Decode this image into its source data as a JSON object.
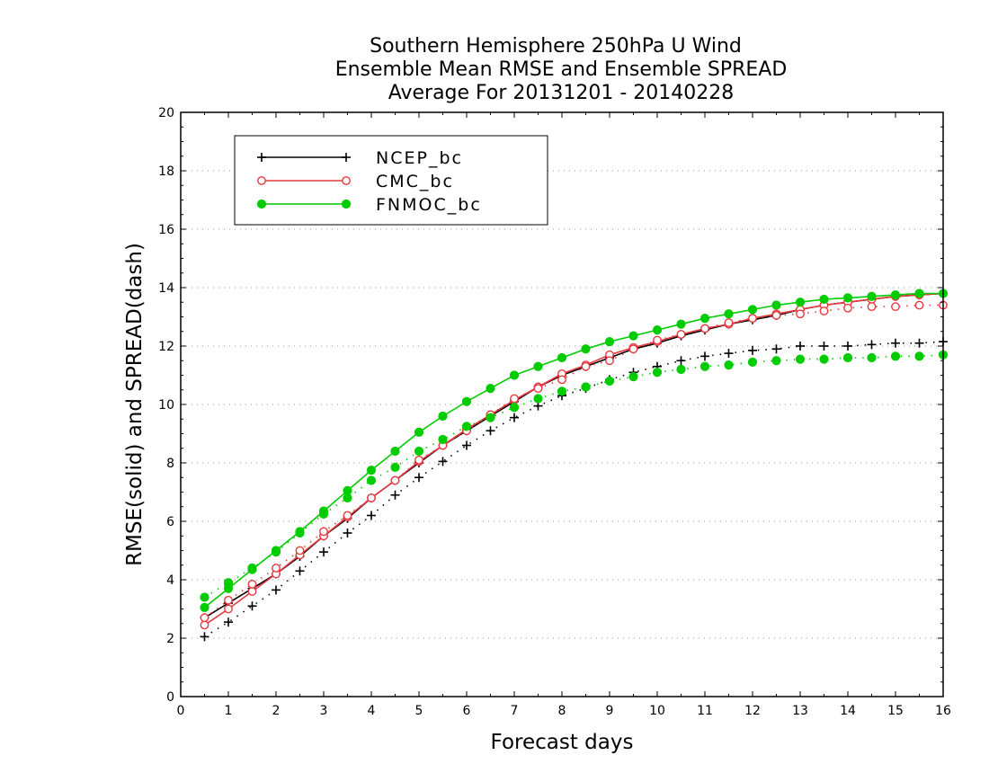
{
  "chart_data": {
    "type": "line",
    "title": [
      "Southern Hemisphere 250hPa U Wind",
      "Ensemble Mean RMSE and Ensemble SPREAD",
      "Average For 20131201 - 20140228"
    ],
    "xlabel": "Forecast days",
    "ylabel": "RMSE(solid) and SPREAD(dash)",
    "xlim": [
      0,
      16
    ],
    "ylim": [
      0,
      20
    ],
    "xticks": [
      "0",
      "1",
      "2",
      "3",
      "4",
      "5",
      "6",
      "7",
      "8",
      "9",
      "10",
      "11",
      "12",
      "13",
      "14",
      "15",
      "16"
    ],
    "yticks": [
      "0",
      "2",
      "4",
      "6",
      "8",
      "10",
      "12",
      "14",
      "16",
      "18",
      "20"
    ],
    "grid": "horizontal dotted",
    "legend_position": "top-left",
    "x": [
      0.5,
      1,
      1.5,
      2,
      2.5,
      3,
      3.5,
      4,
      4.5,
      5,
      5.5,
      6,
      6.5,
      7,
      7.5,
      8,
      8.5,
      9,
      9.5,
      10,
      10.5,
      11,
      11.5,
      12,
      12.5,
      13,
      13.5,
      14,
      14.5,
      15,
      15.5,
      16
    ],
    "series": [
      {
        "name": "NCEP_bc",
        "color": "#000000",
        "marker": "plus",
        "style": "solid",
        "values": [
          2.7,
          3.2,
          3.7,
          4.2,
          4.8,
          5.5,
          6.1,
          6.8,
          7.4,
          8.0,
          8.6,
          9.1,
          9.6,
          10.1,
          10.6,
          11.0,
          11.3,
          11.6,
          11.9,
          12.1,
          12.35,
          12.55,
          12.75,
          12.9,
          13.05,
          13.25,
          13.4,
          13.5,
          13.6,
          13.7,
          13.75,
          13.8
        ]
      },
      {
        "name": "CMC_bc",
        "color": "#e8393f",
        "marker": "open-circle",
        "style": "solid",
        "values": [
          2.45,
          3.0,
          3.6,
          4.2,
          4.85,
          5.5,
          6.15,
          6.8,
          7.4,
          8.05,
          8.6,
          9.15,
          9.65,
          10.15,
          10.6,
          11.05,
          11.35,
          11.7,
          11.95,
          12.15,
          12.4,
          12.6,
          12.75,
          12.95,
          13.1,
          13.25,
          13.4,
          13.5,
          13.6,
          13.7,
          13.75,
          13.8
        ]
      },
      {
        "name": "FNMOC_bc",
        "color": "#00cc00",
        "marker": "filled-circle",
        "style": "solid",
        "values": [
          3.05,
          3.7,
          4.35,
          5.0,
          5.65,
          6.35,
          7.05,
          7.75,
          8.4,
          9.05,
          9.6,
          10.1,
          10.55,
          11.0,
          11.3,
          11.6,
          11.9,
          12.15,
          12.35,
          12.55,
          12.75,
          12.95,
          13.1,
          13.25,
          13.4,
          13.5,
          13.6,
          13.65,
          13.7,
          13.75,
          13.8,
          13.8
        ]
      },
      {
        "name": "NCEP_bc spread",
        "color": "#000000",
        "marker": "plus",
        "style": "dash",
        "values": [
          2.05,
          2.55,
          3.1,
          3.65,
          4.3,
          4.95,
          5.6,
          6.2,
          6.9,
          7.5,
          8.05,
          8.6,
          9.1,
          9.55,
          9.95,
          10.3,
          10.55,
          10.85,
          11.1,
          11.3,
          11.5,
          11.65,
          11.75,
          11.85,
          11.9,
          12.0,
          12.0,
          12.0,
          12.05,
          12.1,
          12.1,
          12.15
        ]
      },
      {
        "name": "CMC_bc spread",
        "color": "#e8393f",
        "marker": "open-circle",
        "style": "dash",
        "values": [
          2.7,
          3.3,
          3.85,
          4.4,
          5.0,
          5.65,
          6.2,
          6.8,
          7.4,
          8.1,
          8.6,
          9.1,
          9.65,
          10.2,
          10.55,
          10.85,
          11.3,
          11.5,
          11.9,
          12.2,
          12.4,
          12.6,
          12.8,
          12.95,
          13.05,
          13.1,
          13.2,
          13.3,
          13.35,
          13.35,
          13.4,
          13.4
        ]
      },
      {
        "name": "FNMOC_bc spread",
        "color": "#00cc00",
        "marker": "filled-circle",
        "style": "dash",
        "values": [
          3.4,
          3.9,
          4.4,
          4.95,
          5.6,
          6.25,
          6.8,
          7.4,
          7.85,
          8.4,
          8.8,
          9.25,
          9.55,
          9.9,
          10.2,
          10.45,
          10.6,
          10.8,
          10.95,
          11.1,
          11.2,
          11.3,
          11.35,
          11.45,
          11.5,
          11.55,
          11.55,
          11.6,
          11.6,
          11.65,
          11.65,
          11.7
        ]
      }
    ],
    "legend": [
      {
        "label": "NCEP_bc",
        "color": "#000000",
        "marker": "plus"
      },
      {
        "label": "CMC_bc",
        "color": "#e8393f",
        "marker": "open-circle"
      },
      {
        "label": "FNMOC_bc",
        "color": "#00cc00",
        "marker": "filled-circle"
      }
    ]
  }
}
